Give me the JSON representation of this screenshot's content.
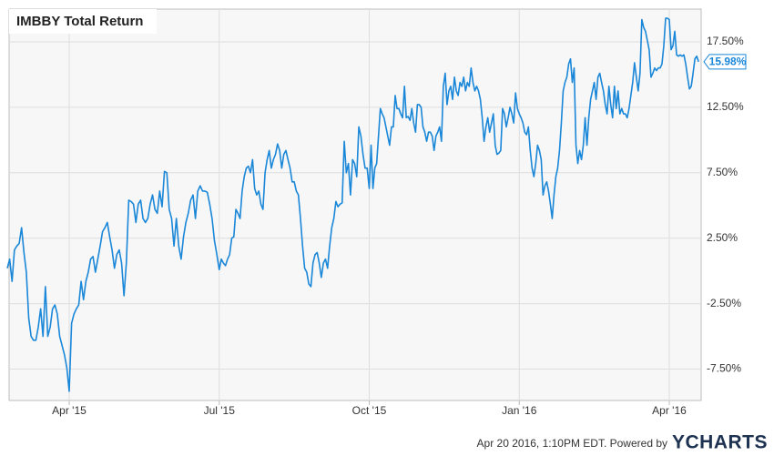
{
  "chart_data": {
    "type": "line",
    "title": "IMBBY Total Return",
    "color": "#1a87d8",
    "categories": [
      null,
      null,
      null,
      null,
      null,
      null,
      null,
      null,
      null,
      null,
      null,
      null,
      null,
      null,
      null,
      null,
      null,
      null,
      null,
      null,
      null,
      null,
      null,
      null,
      null,
      null,
      "Apr '15",
      null,
      null,
      null,
      null,
      null,
      null,
      null,
      null,
      null,
      null,
      null,
      null,
      null,
      null,
      null,
      null,
      null,
      null,
      null,
      null,
      null,
      null,
      null,
      null,
      null,
      null,
      null,
      null,
      null,
      null,
      null,
      null,
      null,
      null,
      null,
      null,
      null,
      null,
      null,
      null,
      null,
      null,
      null,
      null,
      null,
      null,
      null,
      null,
      null,
      null,
      null,
      null,
      null,
      null,
      null,
      null,
      null,
      null,
      null,
      null,
      null,
      null,
      "Jul '15",
      null,
      null,
      null,
      null,
      null,
      null,
      null,
      null,
      null,
      null,
      null,
      null,
      null,
      null,
      null,
      null,
      null,
      null,
      null,
      null,
      null,
      null,
      null,
      null,
      null,
      null,
      null,
      null,
      null,
      null,
      null,
      null,
      null,
      null,
      null,
      null,
      null,
      null,
      null,
      null,
      null,
      null,
      null,
      null,
      null,
      null,
      null,
      null,
      null,
      null,
      null,
      null,
      null,
      null,
      null,
      null,
      null,
      null,
      null,
      null,
      null,
      null,
      null,
      null,
      null,
      null,
      null,
      null,
      null,
      null,
      null,
      "Oct '15",
      null,
      null,
      null,
      null,
      null,
      null,
      null,
      null,
      null,
      null,
      null,
      null,
      null,
      null,
      null,
      null,
      null,
      null,
      null,
      null,
      null,
      null,
      null,
      null,
      null,
      null,
      null,
      null,
      null,
      null,
      null,
      null,
      null,
      null,
      null,
      null,
      null,
      null,
      null,
      null,
      null,
      null,
      null,
      null,
      null,
      null,
      null,
      null,
      null,
      null,
      null,
      null,
      null,
      null,
      null,
      null,
      null,
      null,
      null,
      null,
      null,
      null,
      null,
      null,
      null,
      null,
      null,
      null,
      null,
      null,
      null,
      null,
      null,
      null,
      null,
      null,
      null,
      null,
      null,
      null,
      "Jan '16",
      null,
      null,
      null,
      null,
      null,
      null,
      null,
      null,
      null,
      null,
      null,
      null,
      null,
      null,
      null,
      null,
      null,
      null,
      null,
      null,
      null,
      null,
      null,
      null,
      null,
      null,
      null,
      null,
      null,
      null,
      null,
      null,
      null,
      null,
      null,
      null,
      null,
      null,
      null,
      null,
      null,
      null,
      null,
      null,
      null,
      null,
      null,
      null,
      null,
      null,
      null,
      null,
      null,
      null,
      null,
      null,
      null,
      null,
      null,
      null,
      null,
      null,
      null,
      null,
      null,
      null,
      null,
      null,
      null,
      null,
      null,
      null,
      null,
      null,
      null,
      null,
      null,
      null,
      null,
      null,
      null,
      "Apr '16",
      null,
      null,
      null,
      null,
      null,
      null,
      null,
      null,
      null,
      null,
      null,
      null,
      null,
      null,
      null,
      null
    ],
    "values": [
      0.2,
      0.9,
      -0.8,
      1.6,
      1.9,
      2.1,
      3.3,
      1.4,
      -0.1,
      -3.6,
      -5.0,
      -5.3,
      -5.3,
      -4.3,
      -2.9,
      -5.0,
      -1.2,
      -5.0,
      -4.3,
      -2.9,
      -2.6,
      -3.3,
      -5.0,
      -5.7,
      -6.4,
      -7.4,
      -9.2,
      -4.0,
      -3.3,
      -2.9,
      -2.6,
      -0.8,
      -2.2,
      -0.8,
      -0.1,
      0.9,
      1.1,
      -0.1,
      0.9,
      1.9,
      3.0,
      3.3,
      3.7,
      2.6,
      1.6,
      0.2,
      1.25,
      1.6,
      0.6,
      -1.9,
      0.6,
      5.4,
      5.3,
      5.1,
      3.7,
      5.1,
      5.4,
      4.0,
      3.7,
      4.0,
      5.1,
      5.8,
      4.7,
      4.4,
      6.1,
      4.9,
      7.6,
      7.5,
      4.7,
      4.0,
      1.9,
      4.0,
      1.9,
      0.9,
      2.6,
      3.7,
      4.4,
      5.4,
      5.8,
      4.0,
      6.1,
      6.5,
      6.1,
      6.1,
      6.0,
      5.1,
      4.0,
      2.3,
      1.25,
      0.1,
      0.9,
      0.6,
      0.4,
      0.9,
      1.25,
      2.5,
      2.6,
      4.7,
      4.4,
      4.0,
      6.1,
      7.2,
      7.85,
      8.0,
      7.5,
      8.5,
      6.3,
      5.8,
      6.1,
      5.1,
      4.7,
      7.5,
      8.5,
      9.2,
      7.85,
      8.5,
      8.9,
      9.7,
      9.2,
      7.85,
      8.9,
      9.2,
      8.5,
      7.85,
      6.8,
      6.8,
      6.1,
      5.8,
      4.0,
      1.9,
      0.2,
      -0.1,
      -1.0,
      -1.2,
      0.6,
      1.25,
      1.4,
      0.6,
      -0.5,
      0.6,
      0.9,
      0.2,
      1.9,
      3.3,
      4.0,
      5.3,
      4.9,
      5.1,
      5.2,
      9.9,
      7.5,
      8.2,
      5.8,
      8.5,
      8.2,
      7.2,
      11.0,
      10.3,
      8.9,
      7.85,
      7.85,
      6.3,
      9.6,
      6.3,
      7.85,
      8.2,
      10.3,
      12.4,
      12.0,
      11.7,
      11.0,
      10.3,
      9.6,
      11.0,
      11.0,
      13.4,
      12.4,
      12.4,
      12.0,
      11.7,
      14.1,
      11.7,
      11.8,
      11.5,
      12.4,
      11.3,
      10.6,
      12.7,
      12.7,
      12.5,
      11.0,
      10.6,
      9.9,
      10.6,
      10.6,
      10.3,
      9.2,
      10.3,
      10.6,
      11.0,
      9.9,
      14.1,
      15.1,
      12.7,
      13.75,
      14.1,
      13.1,
      14.8,
      13.75,
      13.4,
      14.4,
      14.1,
      14.8,
      13.75,
      14.4,
      14.1,
      15.5,
      14.4,
      13.75,
      14.1,
      13.75,
      13.1,
      11.7,
      9.9,
      11.0,
      11.7,
      10.6,
      11.3,
      12.0,
      9.6,
      8.9,
      9.0,
      9.2,
      12.4,
      12.0,
      11.0,
      11.7,
      12.5,
      12.0,
      11.3,
      13.6,
      12.4,
      12.0,
      11.7,
      11.3,
      10.6,
      10.4,
      11.0,
      9.2,
      7.85,
      7.2,
      8.2,
      9.6,
      9.2,
      8.5,
      5.8,
      6.5,
      6.8,
      6.1,
      5.1,
      4.0,
      5.8,
      7.2,
      7.85,
      9.2,
      11.3,
      13.75,
      14.4,
      14.8,
      15.8,
      16.2,
      14.4,
      15.5,
      9.6,
      8.2,
      9.2,
      8.5,
      9.6,
      11.7,
      9.6,
      11.7,
      13.1,
      13.75,
      14.4,
      13.1,
      14.8,
      15.1,
      14.4,
      13.75,
      12.7,
      12.0,
      14.1,
      12.7,
      11.7,
      14.1,
      12.4,
      13.75,
      12.0,
      12.4,
      12.0,
      12.0,
      11.7,
      12.4,
      13.4,
      14.4,
      15.9,
      14.8,
      13.75,
      15.1,
      19.2,
      18.6,
      18.3,
      17.6,
      16.9,
      14.8,
      15.1,
      15.5,
      15.3,
      15.5,
      15.5,
      15.8,
      17.2,
      19.3,
      19.3,
      19.2,
      16.9,
      17.2,
      18.3,
      16.5,
      16.4,
      16.5,
      16.4,
      16.5,
      15.8,
      14.8,
      13.9,
      14.1,
      15.1,
      16.2,
      16.4,
      15.98
    ],
    "value_labels": [
      null,
      null,
      null,
      null,
      null,
      null,
      null,
      null,
      null,
      null,
      null,
      null,
      null,
      null,
      null,
      null,
      null,
      null,
      null,
      null,
      null,
      null,
      null,
      null,
      null,
      null,
      null,
      null,
      null,
      null,
      null,
      null,
      null,
      null,
      null,
      null,
      null,
      null,
      null,
      null,
      null,
      null,
      null,
      null,
      null,
      null,
      null,
      null,
      null,
      null,
      null,
      null,
      null,
      null,
      null,
      null,
      null,
      null,
      null,
      null,
      null,
      null,
      null,
      null,
      null,
      null,
      null,
      null,
      null,
      null,
      null,
      null,
      null,
      null,
      null,
      null,
      null,
      null,
      null,
      null,
      null,
      null,
      null,
      null,
      null,
      null,
      null,
      null,
      null,
      null,
      null,
      null,
      null,
      null,
      null,
      null,
      null,
      null,
      null,
      null,
      null,
      null,
      null,
      null,
      null,
      null,
      null,
      null,
      null,
      null,
      null,
      null,
      null,
      null,
      null,
      null,
      null,
      null,
      null,
      null,
      null,
      null,
      null,
      null,
      null,
      null,
      null,
      null,
      null,
      null,
      null,
      null,
      null,
      null,
      null,
      null,
      null,
      null,
      null,
      null,
      null,
      null,
      null,
      null,
      null,
      null,
      null,
      null,
      null,
      null,
      null,
      null,
      null,
      null,
      null,
      null,
      null,
      null,
      null,
      null,
      null,
      null,
      null,
      null,
      null,
      null,
      null,
      null,
      null,
      null,
      null,
      null,
      null,
      null,
      null,
      null,
      null,
      null,
      null,
      null,
      null,
      null,
      null,
      null,
      null,
      null,
      null,
      null,
      null,
      null,
      null,
      null,
      null,
      null,
      null,
      null,
      null,
      null,
      null,
      null,
      null,
      null,
      null,
      null,
      null,
      null,
      null,
      null,
      null,
      null,
      null,
      null,
      null,
      null,
      null,
      null,
      null,
      null,
      null,
      null,
      null,
      null,
      null,
      null,
      null,
      null,
      null,
      null,
      null,
      null,
      null,
      null,
      null,
      null,
      null,
      null,
      null,
      null,
      null,
      null,
      null,
      null,
      null,
      null,
      null,
      null,
      null,
      null,
      null,
      null,
      null,
      null,
      null,
      null,
      null,
      null,
      null,
      null,
      null,
      null,
      null,
      null,
      null,
      null,
      null,
      null,
      null,
      null,
      null,
      null,
      null,
      null,
      null,
      null,
      null,
      null,
      null,
      null,
      null,
      null,
      null,
      null,
      null,
      null,
      null,
      null,
      null,
      null,
      null,
      null,
      null,
      null,
      null,
      null,
      null,
      null,
      null,
      null,
      null,
      null,
      null,
      null,
      null,
      null,
      null,
      null,
      null,
      null,
      null,
      null,
      null,
      null,
      null,
      null,
      null,
      null,
      null,
      null,
      null,
      null,
      null,
      null,
      null,
      null,
      null,
      null,
      null,
      null,
      null,
      null,
      null,
      null,
      null,
      null,
      null,
      null,
      null,
      null,
      null,
      null,
      "15.98%"
    ],
    "ylim": [
      -9.9,
      20
    ],
    "yticks": [
      {
        "value": -7.5,
        "label": "-7.50%"
      },
      {
        "value": -2.5,
        "label": "-2.50%"
      },
      {
        "value": 2.5,
        "label": "2.50%"
      },
      {
        "value": 7.5,
        "label": "7.50%"
      },
      {
        "value": 12.5,
        "label": "12.50%"
      },
      {
        "value": 17.5,
        "label": "17.50%"
      }
    ],
    "grid": true,
    "footer": "Apr 20 2016, 1:10PM EDT.  Powered by",
    "logo": "YCHARTS"
  }
}
